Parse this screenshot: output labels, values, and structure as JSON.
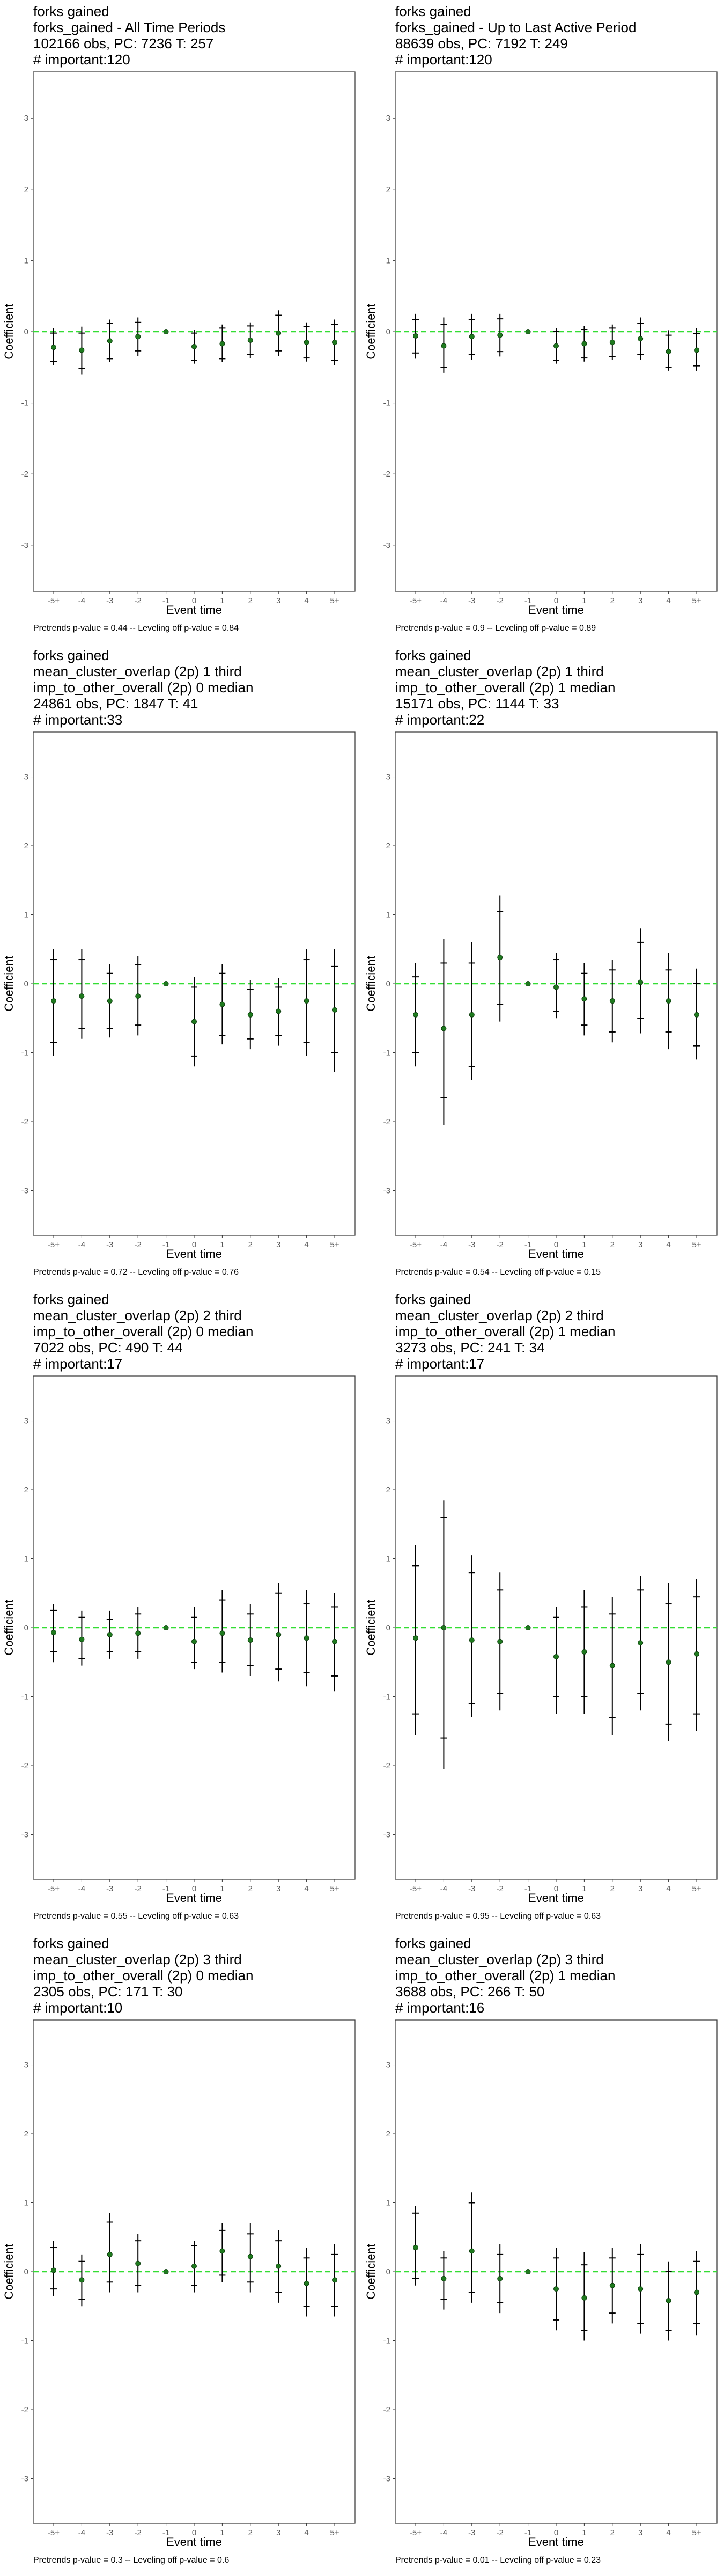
{
  "chart_data": [
    {
      "type": "scatter",
      "title_lines": [
        "forks gained",
        "forks_gained - All Time Periods",
        "102166 obs, PC: 7236 T: 257",
        "# important:120"
      ],
      "xlabel": "Event time",
      "ylabel": "Coefficient",
      "categories": [
        "-5+",
        "-4",
        "-3",
        "-2",
        "-1",
        "0",
        "1",
        "2",
        "3",
        "4",
        "5+"
      ],
      "ylim": [
        -3.65,
        3.65
      ],
      "yticks": [
        -3,
        -2,
        -1,
        0,
        1,
        2,
        3
      ],
      "values": [
        -0.22,
        -0.26,
        -0.13,
        -0.07,
        0,
        -0.21,
        -0.17,
        -0.12,
        -0.02,
        -0.15,
        -0.15
      ],
      "ci_inner": [
        [
          -0.42,
          -0.02
        ],
        [
          -0.52,
          -0.02
        ],
        [
          -0.38,
          0.12
        ],
        [
          -0.27,
          0.13
        ],
        [
          0,
          0
        ],
        [
          -0.4,
          -0.02
        ],
        [
          -0.38,
          0.05
        ],
        [
          -0.32,
          0.08
        ],
        [
          -0.27,
          0.23
        ],
        [
          -0.37,
          0.07
        ],
        [
          -0.4,
          0.1
        ]
      ],
      "ci_outer": [
        [
          -0.47,
          0.05
        ],
        [
          -0.6,
          0.07
        ],
        [
          -0.43,
          0.17
        ],
        [
          -0.34,
          0.2
        ],
        [
          0,
          0
        ],
        [
          -0.45,
          0.03
        ],
        [
          -0.43,
          0.1
        ],
        [
          -0.37,
          0.13
        ],
        [
          -0.34,
          0.3
        ],
        [
          -0.42,
          0.13
        ],
        [
          -0.47,
          0.17
        ]
      ],
      "reference_line": 0,
      "footnote": "Pretrends p-value = 0.44 -- Leveling off p-value = 0.84"
    },
    {
      "type": "scatter",
      "title_lines": [
        "forks gained",
        "forks_gained - Up to Last Active Period",
        "88639 obs, PC: 7192 T: 249",
        "# important:120"
      ],
      "xlabel": "Event time",
      "ylabel": "Coefficient",
      "categories": [
        "-5+",
        "-4",
        "-3",
        "-2",
        "-1",
        "0",
        "1",
        "2",
        "3",
        "4",
        "5+"
      ],
      "ylim": [
        -3.65,
        3.65
      ],
      "yticks": [
        -3,
        -2,
        -1,
        0,
        1,
        2,
        3
      ],
      "values": [
        -0.06,
        -0.2,
        -0.07,
        -0.05,
        0,
        -0.2,
        -0.17,
        -0.15,
        -0.1,
        -0.28,
        -0.26
      ],
      "ci_inner": [
        [
          -0.3,
          0.17
        ],
        [
          -0.5,
          0.1
        ],
        [
          -0.32,
          0.17
        ],
        [
          -0.28,
          0.18
        ],
        [
          0,
          0
        ],
        [
          -0.4,
          0
        ],
        [
          -0.37,
          0.03
        ],
        [
          -0.35,
          0.05
        ],
        [
          -0.32,
          0.12
        ],
        [
          -0.5,
          -0.05
        ],
        [
          -0.48,
          -0.03
        ]
      ],
      "ci_outer": [
        [
          -0.38,
          0.25
        ],
        [
          -0.58,
          0.2
        ],
        [
          -0.4,
          0.25
        ],
        [
          -0.35,
          0.25
        ],
        [
          0,
          0
        ],
        [
          -0.45,
          0.05
        ],
        [
          -0.42,
          0.08
        ],
        [
          -0.4,
          0.1
        ],
        [
          -0.4,
          0.2
        ],
        [
          -0.55,
          0.02
        ],
        [
          -0.55,
          0.05
        ]
      ],
      "reference_line": 0,
      "footnote": "Pretrends p-value = 0.9 -- Leveling off p-value = 0.89"
    },
    {
      "type": "scatter",
      "title_lines": [
        "forks gained",
        "mean_cluster_overlap (2p) 1 third",
        "imp_to_other_overall (2p) 0 median",
        "24861 obs, PC: 1847 T: 41",
        "# important:33"
      ],
      "xlabel": "Event time",
      "ylabel": "Coefficient",
      "categories": [
        "-5+",
        "-4",
        "-3",
        "-2",
        "-1",
        "0",
        "1",
        "2",
        "3",
        "4",
        "5+"
      ],
      "ylim": [
        -3.65,
        3.65
      ],
      "yticks": [
        -3,
        -2,
        -1,
        0,
        1,
        2,
        3
      ],
      "values": [
        -0.25,
        -0.18,
        -0.25,
        -0.18,
        0,
        -0.55,
        -0.3,
        -0.45,
        -0.4,
        -0.25,
        -0.38
      ],
      "ci_inner": [
        [
          -0.85,
          0.35
        ],
        [
          -0.65,
          0.35
        ],
        [
          -0.65,
          0.15
        ],
        [
          -0.6,
          0.28
        ],
        [
          0,
          0
        ],
        [
          -1.05,
          -0.05
        ],
        [
          -0.75,
          0.15
        ],
        [
          -0.8,
          -0.08
        ],
        [
          -0.75,
          -0.05
        ],
        [
          -0.85,
          0.35
        ],
        [
          -1.0,
          0.25
        ]
      ],
      "ci_outer": [
        [
          -1.05,
          0.5
        ],
        [
          -0.8,
          0.5
        ],
        [
          -0.78,
          0.28
        ],
        [
          -0.75,
          0.4
        ],
        [
          0,
          0
        ],
        [
          -1.2,
          0.1
        ],
        [
          -0.88,
          0.28
        ],
        [
          -0.95,
          0.05
        ],
        [
          -0.9,
          0.08
        ],
        [
          -1.05,
          0.5
        ],
        [
          -1.28,
          0.5
        ]
      ],
      "reference_line": 0,
      "footnote": "Pretrends p-value = 0.72 -- Leveling off p-value = 0.76"
    },
    {
      "type": "scatter",
      "title_lines": [
        "forks gained",
        "mean_cluster_overlap (2p) 1 third",
        "imp_to_other_overall (2p) 1 median",
        "15171 obs, PC: 1144 T: 33",
        "# important:22"
      ],
      "xlabel": "Event time",
      "ylabel": "Coefficient",
      "categories": [
        "-5+",
        "-4",
        "-3",
        "-2",
        "-1",
        "0",
        "1",
        "2",
        "3",
        "4",
        "5+"
      ],
      "ylim": [
        -3.65,
        3.65
      ],
      "yticks": [
        -3,
        -2,
        -1,
        0,
        1,
        2,
        3
      ],
      "values": [
        -0.45,
        -0.65,
        -0.45,
        0.38,
        0,
        -0.05,
        -0.22,
        -0.25,
        0.02,
        -0.25,
        -0.45
      ],
      "ci_inner": [
        [
          -1.0,
          0.1
        ],
        [
          -1.65,
          0.3
        ],
        [
          -1.2,
          0.3
        ],
        [
          -0.3,
          1.05
        ],
        [
          0,
          0
        ],
        [
          -0.4,
          0.35
        ],
        [
          -0.6,
          0.15
        ],
        [
          -0.7,
          0.2
        ],
        [
          -0.5,
          0.6
        ],
        [
          -0.7,
          0.2
        ],
        [
          -0.9,
          0.0
        ]
      ],
      "ci_outer": [
        [
          -1.2,
          0.3
        ],
        [
          -2.05,
          0.65
        ],
        [
          -1.4,
          0.6
        ],
        [
          -0.55,
          1.28
        ],
        [
          0,
          0
        ],
        [
          -0.5,
          0.45
        ],
        [
          -0.75,
          0.3
        ],
        [
          -0.85,
          0.35
        ],
        [
          -0.72,
          0.8
        ],
        [
          -0.95,
          0.45
        ],
        [
          -1.1,
          0.22
        ]
      ],
      "reference_line": 0,
      "footnote": "Pretrends p-value = 0.54 -- Leveling off p-value = 0.15"
    },
    {
      "type": "scatter",
      "title_lines": [
        "forks gained",
        "mean_cluster_overlap (2p) 2 third",
        "imp_to_other_overall (2p) 0 median",
        "7022 obs, PC: 490 T: 44",
        "# important:17"
      ],
      "xlabel": "Event time",
      "ylabel": "Coefficient",
      "categories": [
        "-5+",
        "-4",
        "-3",
        "-2",
        "-1",
        "0",
        "1",
        "2",
        "3",
        "4",
        "5+"
      ],
      "ylim": [
        -3.65,
        3.65
      ],
      "yticks": [
        -3,
        -2,
        -1,
        0,
        1,
        2,
        3
      ],
      "values": [
        -0.07,
        -0.17,
        -0.1,
        -0.08,
        0,
        -0.2,
        -0.08,
        -0.18,
        -0.1,
        -0.15,
        -0.2
      ],
      "ci_inner": [
        [
          -0.35,
          0.25
        ],
        [
          -0.45,
          0.15
        ],
        [
          -0.35,
          0.12
        ],
        [
          -0.35,
          0.2
        ],
        [
          0,
          0
        ],
        [
          -0.5,
          0.15
        ],
        [
          -0.5,
          0.4
        ],
        [
          -0.55,
          0.2
        ],
        [
          -0.6,
          0.5
        ],
        [
          -0.65,
          0.35
        ],
        [
          -0.7,
          0.3
        ]
      ],
      "ci_outer": [
        [
          -0.5,
          0.35
        ],
        [
          -0.55,
          0.25
        ],
        [
          -0.45,
          0.25
        ],
        [
          -0.45,
          0.3
        ],
        [
          0,
          0
        ],
        [
          -0.6,
          0.3
        ],
        [
          -0.65,
          0.55
        ],
        [
          -0.7,
          0.35
        ],
        [
          -0.78,
          0.65
        ],
        [
          -0.85,
          0.55
        ],
        [
          -0.92,
          0.5
        ]
      ],
      "reference_line": 0,
      "footnote": "Pretrends p-value = 0.55 -- Leveling off p-value = 0.63"
    },
    {
      "type": "scatter",
      "title_lines": [
        "forks gained",
        "mean_cluster_overlap (2p) 2 third",
        "imp_to_other_overall (2p) 1 median",
        "3273 obs, PC: 241 T: 34",
        "# important:17"
      ],
      "xlabel": "Event time",
      "ylabel": "Coefficient",
      "categories": [
        "-5+",
        "-4",
        "-3",
        "-2",
        "-1",
        "0",
        "1",
        "2",
        "3",
        "4",
        "5+"
      ],
      "ylim": [
        -3.65,
        3.65
      ],
      "yticks": [
        -3,
        -2,
        -1,
        0,
        1,
        2,
        3
      ],
      "values": [
        -0.15,
        0.0,
        -0.18,
        -0.2,
        0,
        -0.42,
        -0.35,
        -0.55,
        -0.22,
        -0.5,
        -0.38
      ],
      "ci_inner": [
        [
          -1.25,
          0.9
        ],
        [
          -1.6,
          1.6
        ],
        [
          -1.1,
          0.8
        ],
        [
          -0.95,
          0.55
        ],
        [
          0,
          0
        ],
        [
          -1.0,
          0.15
        ],
        [
          -1.0,
          0.3
        ],
        [
          -1.3,
          0.2
        ],
        [
          -0.95,
          0.55
        ],
        [
          -1.4,
          0.35
        ],
        [
          -1.25,
          0.45
        ]
      ],
      "ci_outer": [
        [
          -1.55,
          1.2
        ],
        [
          -2.05,
          1.85
        ],
        [
          -1.3,
          1.05
        ],
        [
          -1.2,
          0.8
        ],
        [
          0,
          0
        ],
        [
          -1.25,
          0.3
        ],
        [
          -1.25,
          0.55
        ],
        [
          -1.55,
          0.45
        ],
        [
          -1.2,
          0.75
        ],
        [
          -1.65,
          0.65
        ],
        [
          -1.5,
          0.7
        ]
      ],
      "reference_line": 0,
      "footnote": "Pretrends p-value = 0.95 -- Leveling off p-value = 0.63"
    },
    {
      "type": "scatter",
      "title_lines": [
        "forks gained",
        "mean_cluster_overlap (2p) 3 third",
        "imp_to_other_overall (2p) 0 median",
        "2305 obs, PC: 171 T: 30",
        "# important:10"
      ],
      "xlabel": "Event time",
      "ylabel": "Coefficient",
      "categories": [
        "-5+",
        "-4",
        "-3",
        "-2",
        "-1",
        "0",
        "1",
        "2",
        "3",
        "4",
        "5+"
      ],
      "ylim": [
        -3.65,
        3.65
      ],
      "yticks": [
        -3,
        -2,
        -1,
        0,
        1,
        2,
        3
      ],
      "values": [
        0.02,
        -0.12,
        0.25,
        0.12,
        0,
        0.08,
        0.3,
        0.22,
        0.08,
        -0.17,
        -0.12
      ],
      "ci_inner": [
        [
          -0.25,
          0.35
        ],
        [
          -0.4,
          0.15
        ],
        [
          -0.15,
          0.72
        ],
        [
          -0.2,
          0.45
        ],
        [
          0,
          0
        ],
        [
          -0.2,
          0.38
        ],
        [
          -0.05,
          0.6
        ],
        [
          -0.15,
          0.55
        ],
        [
          -0.3,
          0.45
        ],
        [
          -0.5,
          0.2
        ],
        [
          -0.5,
          0.25
        ]
      ],
      "ci_outer": [
        [
          -0.35,
          0.45
        ],
        [
          -0.5,
          0.25
        ],
        [
          -0.3,
          0.85
        ],
        [
          -0.3,
          0.55
        ],
        [
          0,
          0
        ],
        [
          -0.3,
          0.45
        ],
        [
          -0.15,
          0.7
        ],
        [
          -0.3,
          0.7
        ],
        [
          -0.45,
          0.6
        ],
        [
          -0.65,
          0.35
        ],
        [
          -0.65,
          0.4
        ]
      ],
      "reference_line": 0,
      "footnote": "Pretrends p-value = 0.3 -- Leveling off p-value = 0.6"
    },
    {
      "type": "scatter",
      "title_lines": [
        "forks gained",
        "mean_cluster_overlap (2p) 3 third",
        "imp_to_other_overall (2p) 1 median",
        "3688 obs, PC: 266 T: 50",
        "# important:16"
      ],
      "xlabel": "Event time",
      "ylabel": "Coefficient",
      "categories": [
        "-5+",
        "-4",
        "-3",
        "-2",
        "-1",
        "0",
        "1",
        "2",
        "3",
        "4",
        "5+"
      ],
      "ylim": [
        -3.65,
        3.65
      ],
      "yticks": [
        -3,
        -2,
        -1,
        0,
        1,
        2,
        3
      ],
      "values": [
        0.35,
        -0.1,
        0.3,
        -0.1,
        0,
        -0.25,
        -0.38,
        -0.2,
        -0.25,
        -0.42,
        -0.3
      ],
      "ci_inner": [
        [
          -0.1,
          0.85
        ],
        [
          -0.4,
          0.2
        ],
        [
          -0.3,
          1.0
        ],
        [
          -0.45,
          0.25
        ],
        [
          0,
          0
        ],
        [
          -0.7,
          0.2
        ],
        [
          -0.85,
          0.1
        ],
        [
          -0.6,
          0.2
        ],
        [
          -0.75,
          0.25
        ],
        [
          -0.85,
          0.0
        ],
        [
          -0.75,
          0.15
        ]
      ],
      "ci_outer": [
        [
          -0.2,
          0.95
        ],
        [
          -0.55,
          0.3
        ],
        [
          -0.45,
          1.15
        ],
        [
          -0.6,
          0.4
        ],
        [
          0,
          0
        ],
        [
          -0.85,
          0.35
        ],
        [
          -1.0,
          0.28
        ],
        [
          -0.75,
          0.35
        ],
        [
          -0.9,
          0.4
        ],
        [
          -1.0,
          0.15
        ],
        [
          -0.92,
          0.3
        ]
      ],
      "reference_line": 0,
      "footnote": "Pretrends p-value = 0.01 -- Leveling off p-value = 0.23"
    }
  ],
  "colors": {
    "point": "#1f7a1f",
    "reference_line": "#33dd33",
    "error_bar": "#000000",
    "tick_label": "#555555"
  }
}
